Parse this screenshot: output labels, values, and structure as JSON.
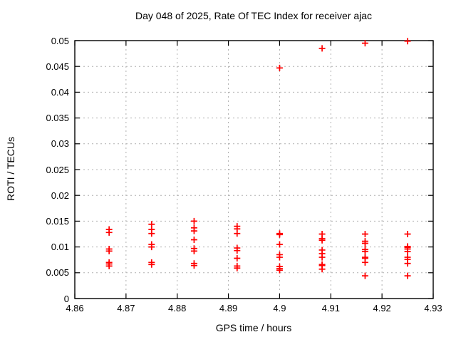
{
  "window": {
    "background_color": "#ffffff",
    "text_color": "#000000"
  },
  "chart_data": {
    "type": "scatter",
    "title": "Day 048 of 2025, Rate Of TEC Index for receiver ajac",
    "xlabel": "GPS time / hours",
    "ylabel": "ROTI / TECUs",
    "xlim": [
      4.86,
      4.93
    ],
    "ylim": [
      0,
      0.05
    ],
    "x_ticks": [
      4.86,
      4.87,
      4.88,
      4.89,
      4.9,
      4.91,
      4.92,
      4.93
    ],
    "x_tick_labels": [
      "4.86",
      "4.87",
      "4.88",
      "4.89",
      "4.9",
      "4.91",
      "4.92",
      "4.93"
    ],
    "y_ticks": [
      0,
      0.005,
      0.01,
      0.015,
      0.02,
      0.025,
      0.03,
      0.035,
      0.04,
      0.045,
      0.05
    ],
    "y_tick_labels": [
      "0",
      "0.005",
      "0.01",
      "0.015",
      "0.02",
      "0.025",
      "0.03",
      "0.035",
      "0.04",
      "0.045",
      "0.05"
    ],
    "grid": true,
    "grid_style": "dashed",
    "grid_color": "#b0b0b0",
    "border_color": "#000000",
    "legend": "none",
    "marker": {
      "shape": "plus",
      "color": "#ff0000",
      "size": 9
    },
    "series": [
      {
        "name": "ROTI",
        "color": "#ff0000",
        "points": [
          [
            4.8667,
            0.0134
          ],
          [
            4.8667,
            0.0128
          ],
          [
            4.8667,
            0.0096
          ],
          [
            4.8667,
            0.0092
          ],
          [
            4.8667,
            0.007
          ],
          [
            4.8667,
            0.0067
          ],
          [
            4.8667,
            0.0063
          ],
          [
            4.875,
            0.0144
          ],
          [
            4.875,
            0.0134
          ],
          [
            4.875,
            0.0126
          ],
          [
            4.875,
            0.0105
          ],
          [
            4.875,
            0.01
          ],
          [
            4.875,
            0.007
          ],
          [
            4.875,
            0.0066
          ],
          [
            4.8833,
            0.015
          ],
          [
            4.8833,
            0.0137
          ],
          [
            4.8833,
            0.0131
          ],
          [
            4.8833,
            0.0114
          ],
          [
            4.8833,
            0.0097
          ],
          [
            4.8833,
            0.0092
          ],
          [
            4.8833,
            0.0068
          ],
          [
            4.8833,
            0.0064
          ],
          [
            4.8917,
            0.014
          ],
          [
            4.8917,
            0.0135
          ],
          [
            4.8917,
            0.0126
          ],
          [
            4.8917,
            0.0098
          ],
          [
            4.8917,
            0.0093
          ],
          [
            4.8917,
            0.0078
          ],
          [
            4.8917,
            0.0063
          ],
          [
            4.8917,
            0.0059
          ],
          [
            4.9,
            0.0447
          ],
          [
            4.9,
            0.0126
          ],
          [
            4.9,
            0.0124
          ],
          [
            4.9,
            0.0105
          ],
          [
            4.9,
            0.0085
          ],
          [
            4.9,
            0.008
          ],
          [
            4.9,
            0.0062
          ],
          [
            4.9,
            0.0058
          ],
          [
            4.9,
            0.0055
          ],
          [
            4.9083,
            0.0485
          ],
          [
            4.9083,
            0.0125
          ],
          [
            4.9083,
            0.0116
          ],
          [
            4.9083,
            0.0113
          ],
          [
            4.9083,
            0.0094
          ],
          [
            4.9083,
            0.0087
          ],
          [
            4.9083,
            0.008
          ],
          [
            4.9083,
            0.0066
          ],
          [
            4.9083,
            0.0064
          ],
          [
            4.9083,
            0.0057
          ],
          [
            4.9167,
            0.0495
          ],
          [
            4.9167,
            0.0125
          ],
          [
            4.9167,
            0.0111
          ],
          [
            4.9167,
            0.0107
          ],
          [
            4.9167,
            0.0095
          ],
          [
            4.9167,
            0.0091
          ],
          [
            4.9167,
            0.008
          ],
          [
            4.9167,
            0.0078
          ],
          [
            4.9167,
            0.007
          ],
          [
            4.9167,
            0.0044
          ],
          [
            4.925,
            0.0499
          ],
          [
            4.925,
            0.0125
          ],
          [
            4.925,
            0.0101
          ],
          [
            4.925,
            0.0099
          ],
          [
            4.925,
            0.0096
          ],
          [
            4.925,
            0.0091
          ],
          [
            4.925,
            0.008
          ],
          [
            4.925,
            0.0076
          ],
          [
            4.925,
            0.0068
          ],
          [
            4.925,
            0.0044
          ]
        ]
      }
    ]
  }
}
